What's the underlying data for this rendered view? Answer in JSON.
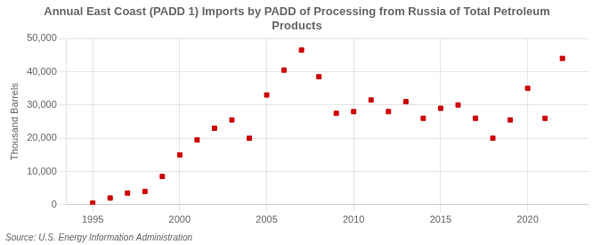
{
  "chart_data": {
    "type": "scatter",
    "title": "Annual East Coast (PADD 1) Imports by PADD of Processing from Russia of Total Petroleum\nProducts",
    "ylabel": "Thousand Barrels",
    "annotations": [
      "Source: U.S. Energy Information Administration"
    ],
    "x": [
      1995,
      1996,
      1997,
      1998,
      1999,
      2000,
      2001,
      2002,
      2003,
      2004,
      2005,
      2006,
      2007,
      2008,
      2009,
      2010,
      2011,
      2012,
      2013,
      2014,
      2015,
      2016,
      2017,
      2018,
      2019,
      2020,
      2021,
      2022
    ],
    "values": [
      500,
      2000,
      3500,
      4000,
      8500,
      15000,
      19500,
      23000,
      25500,
      20000,
      33000,
      40500,
      46500,
      38500,
      27500,
      28000,
      31500,
      28000,
      31000,
      26000,
      29000,
      30000,
      26000,
      20000,
      25500,
      35000,
      26000,
      44000
    ],
    "color": "#cc0000",
    "marker": "square",
    "xlim": [
      1993.5,
      2023.5
    ],
    "xticks": [
      1995,
      2000,
      2005,
      2010,
      2015,
      2020
    ],
    "ylim": [
      0,
      50000
    ],
    "yticks": [
      0,
      {
        "value": 10000,
        "label": "10,000"
      },
      {
        "value": 20000,
        "label": "20,000"
      },
      {
        "value": 30000,
        "label": "30,000"
      },
      {
        "value": 40000,
        "label": "40,000"
      },
      {
        "value": 50000,
        "label": "50,000"
      }
    ],
    "grid": true
  }
}
